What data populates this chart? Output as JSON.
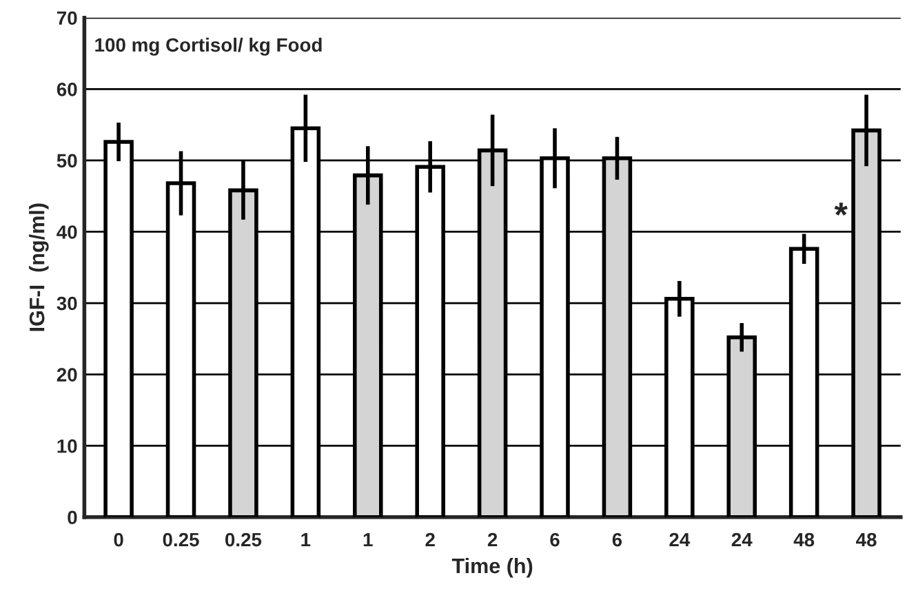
{
  "chart_data": {
    "type": "bar",
    "xlabel": "Time (h)",
    "ylabel": "IGF-I  (ng/ml)",
    "categories": [
      "0",
      "0.25",
      "0.25",
      "1",
      "1",
      "2",
      "2",
      "6",
      "6",
      "24",
      "24",
      "48",
      "48"
    ],
    "values": [
      52.6,
      46.8,
      45.8,
      54.5,
      47.9,
      49.1,
      51.4,
      50.3,
      50.3,
      30.6,
      25.2,
      37.6,
      54.2
    ],
    "errors": [
      2.7,
      4.5,
      4.1,
      4.7,
      4.1,
      3.6,
      5.0,
      4.2,
      3.0,
      2.5,
      2.0,
      2.1,
      5.0
    ],
    "colors": [
      "#ffffff",
      "#ffffff",
      "#d4d4d4",
      "#ffffff",
      "#d4d4d4",
      "#ffffff",
      "#d4d4d4",
      "#ffffff",
      "#d4d4d4",
      "#ffffff",
      "#d4d4d4",
      "#ffffff",
      "#d4d4d4"
    ],
    "ylim": [
      0,
      70
    ],
    "yticks": [
      0,
      10,
      20,
      30,
      40,
      50,
      60,
      70
    ],
    "grid": "y",
    "annotations": [
      "100 mg Cortisol/ kg Food",
      "*"
    ]
  }
}
